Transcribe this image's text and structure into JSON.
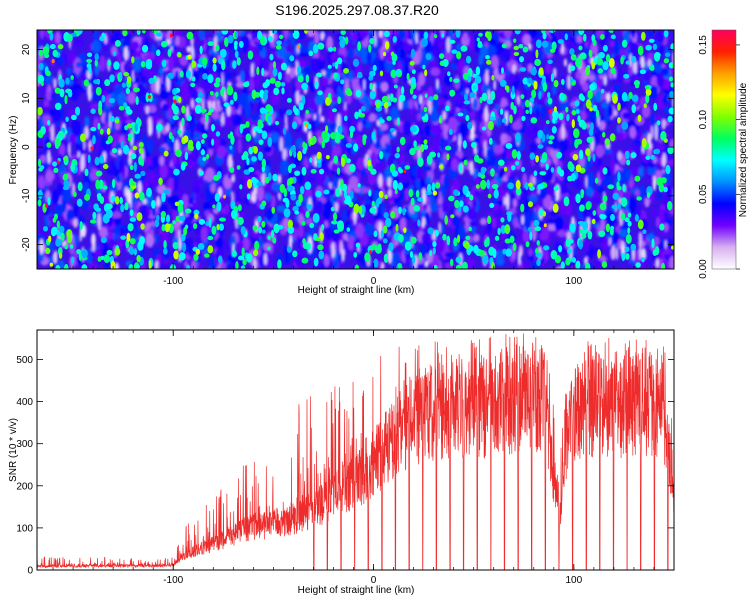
{
  "figure": {
    "title": "S196.2025.297.08.37.R20"
  },
  "chart_data": [
    {
      "type": "heatmap",
      "xlabel": "Height of straight line (km)",
      "ylabel": "Frequency (Hz)",
      "xlim": [
        -168,
        150
      ],
      "ylim": [
        -25,
        24
      ],
      "x_ticks": [
        -100,
        0,
        100
      ],
      "x_tick_labels": [
        "-100",
        "0",
        "100"
      ],
      "y_ticks": [
        -20,
        -10,
        0,
        10,
        20
      ],
      "y_tick_labels": [
        "-20",
        "-10",
        "0",
        "10",
        "20"
      ],
      "description_values": "dense speckle field of normalized spectral amplitude, mostly 0.01-0.06, scattered peaks up to ~0.16",
      "colorbar": {
        "label": "Normalized spectral amplitude",
        "range": [
          0.0,
          0.16
        ],
        "ticks": [
          0.0,
          0.05,
          0.1,
          0.15
        ],
        "tick_labels": [
          "0.00",
          "0.05",
          "0.10",
          "0.15"
        ],
        "colors": [
          "#ffffff",
          "#d8b0f0",
          "#7000ff",
          "#0000ff",
          "#0090ff",
          "#00ffff",
          "#00ff60",
          "#80ff00",
          "#ffff00",
          "#ffa000",
          "#ff2000",
          "#ff0060"
        ]
      }
    },
    {
      "type": "line",
      "xlabel": "Height of straight line (km)",
      "ylabel": "SNR (10 * v/v)",
      "xlim": [
        -168,
        150
      ],
      "ylim": [
        0,
        570
      ],
      "x_ticks": [
        -100,
        0,
        100
      ],
      "x_tick_labels": [
        "-100",
        "0",
        "100"
      ],
      "y_ticks": [
        0,
        100,
        200,
        300,
        400,
        500
      ],
      "y_tick_labels": [
        "0",
        "100",
        "200",
        "300",
        "400",
        "500"
      ],
      "color": "#ee2c2c",
      "envelope": {
        "x": [
          -168,
          -100,
          -95,
          -85,
          -75,
          -65,
          -55,
          -45,
          -35,
          -25,
          -15,
          -5,
          5,
          15,
          25,
          35,
          45,
          55,
          65,
          75,
          85,
          93,
          98,
          105,
          115,
          125,
          135,
          145,
          150
        ],
        "typical": [
          10,
          12,
          40,
          60,
          80,
          110,
          120,
          130,
          150,
          180,
          220,
          260,
          320,
          380,
          430,
          430,
          440,
          440,
          450,
          460,
          460,
          150,
          420,
          440,
          450,
          440,
          450,
          430,
          200
        ],
        "peak": [
          32,
          30,
          120,
          150,
          200,
          270,
          250,
          260,
          440,
          420,
          470,
          490,
          540,
          550,
          550,
          550,
          540,
          560,
          560,
          565,
          565,
          300,
          560,
          560,
          550,
          550,
          550,
          550,
          350
        ]
      },
      "gaps_start_x": -30,
      "gap_spacing": 6.8
    }
  ]
}
